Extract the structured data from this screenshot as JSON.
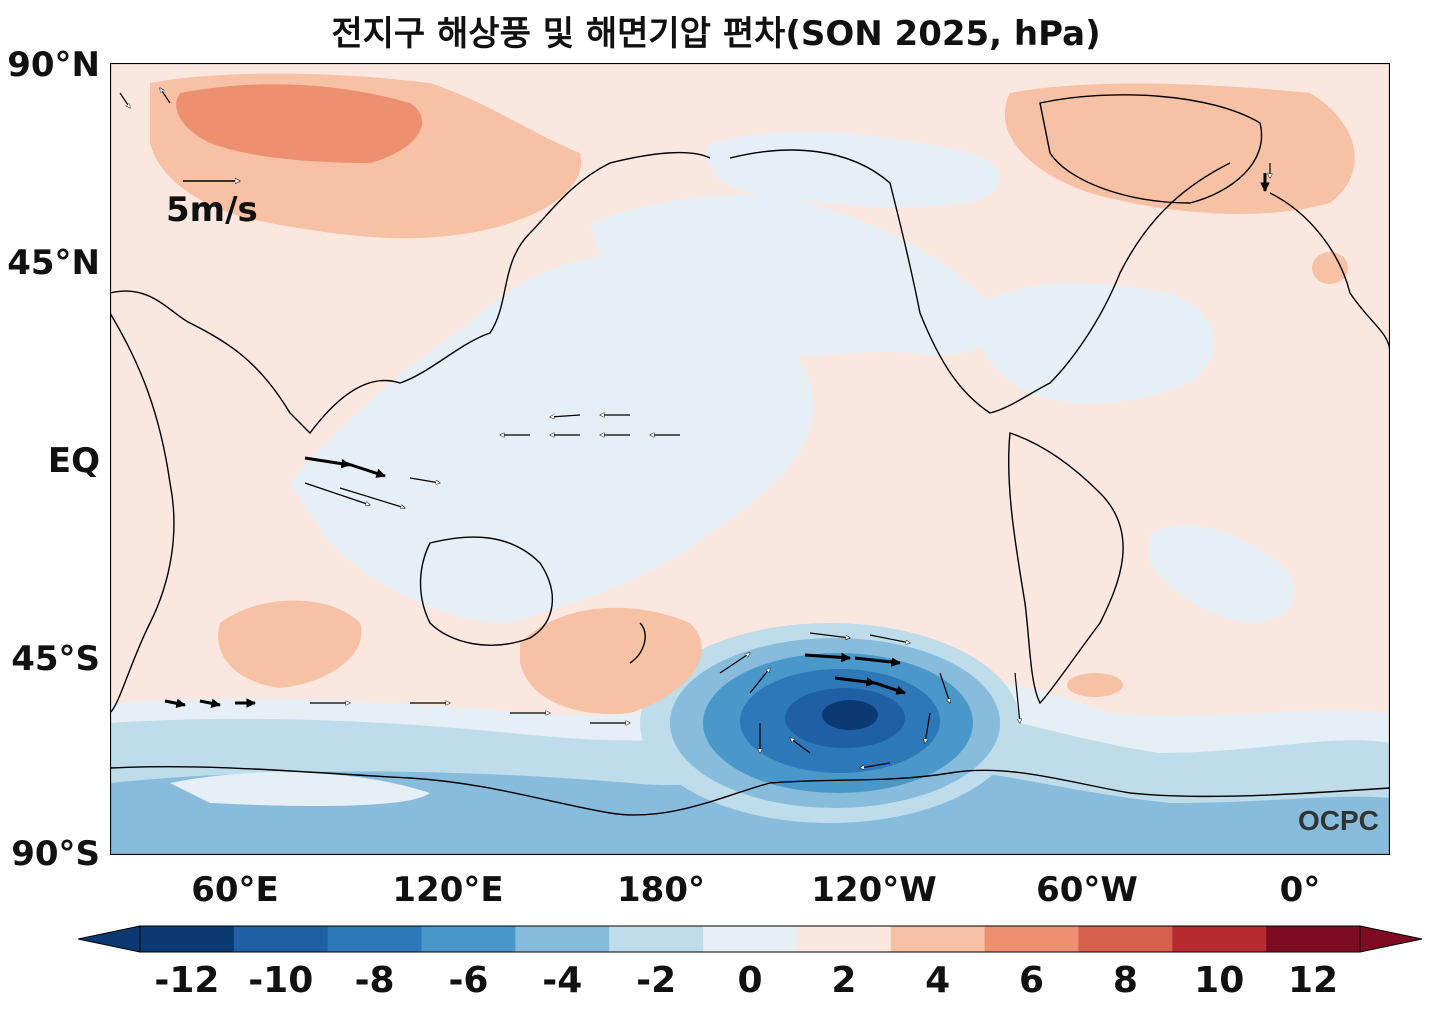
{
  "title": "전지구 해상풍 및 해면기압 편차(SON 2025, hPa)",
  "y_axis_labels": [
    "90°N",
    "45°N",
    "EQ",
    "45°S",
    "90°S"
  ],
  "x_axis_labels": [
    "60°E",
    "120°E",
    "180°",
    "120°W",
    "60°W",
    "0°"
  ],
  "reference_vector_label": "5m/s",
  "logo_text": "OCPC",
  "colorbar": {
    "ticks": [
      "-12",
      "-10",
      "-8",
      "-6",
      "-4",
      "-2",
      "0",
      "2",
      "4",
      "6",
      "8",
      "10",
      "12"
    ],
    "colors": [
      "#0b3a72",
      "#1f5fa5",
      "#2c78b8",
      "#4a98c9",
      "#87bcdc",
      "#bfdceb",
      "#e6eff5",
      "#fae8e0",
      "#f6c1a5",
      "#ec9070",
      "#d6604d",
      "#b72a30",
      "#7f0b22"
    ],
    "extend": "both"
  },
  "map": {
    "projection": "equirectangular, centered 180°",
    "background_anomaly_color": "#fae8e0",
    "ocean_neutral_color": "#e6eff5",
    "coastline_color": "#000000"
  }
}
